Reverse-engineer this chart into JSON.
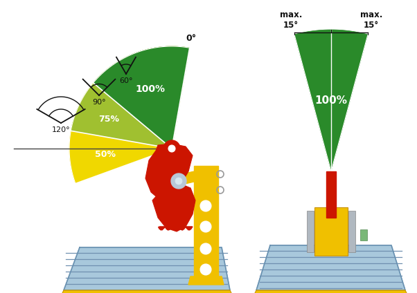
{
  "bg_color": "#ffffff",
  "fig_width": 6.02,
  "fig_height": 4.24,
  "dpi": 100,
  "green_color": "#2a8a2a",
  "yellow_green_color": "#a0c030",
  "yellow_color": "#f0d800",
  "red_color": "#cc1500",
  "yellow_frame_color": "#f0c000",
  "yellow_frame_dark": "#c89000",
  "steel_blue": "#a8c8dc",
  "steel_blue_dark": "#6890b0",
  "steel_blue_line": "#7090b0",
  "white": "#ffffff",
  "black": "#111111",
  "gray": "#888888",
  "light_gray": "#cccccc",
  "light_blue_gray": "#b0c8dc"
}
